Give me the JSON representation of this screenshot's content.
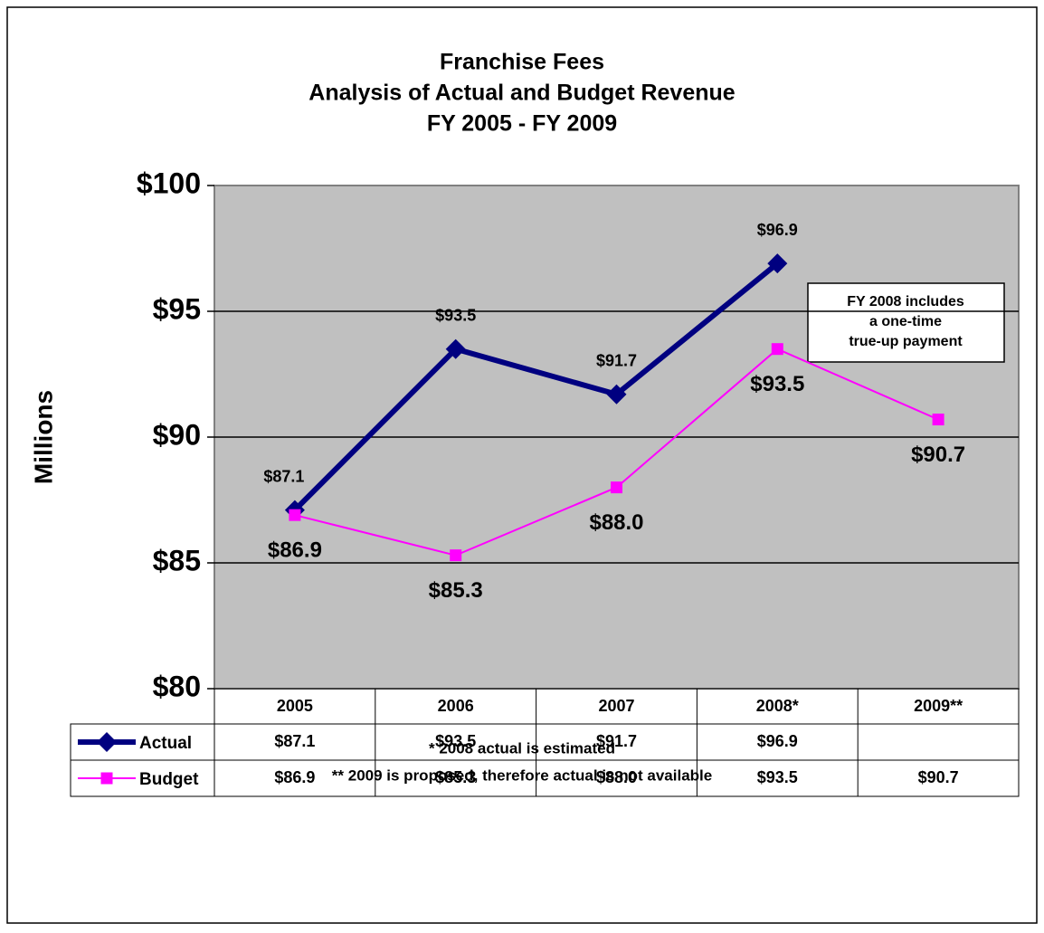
{
  "chart_data": {
    "type": "line",
    "title": [
      "Franchise Fees",
      "Analysis of Actual and Budget Revenue",
      "FY 2005 - FY 2009"
    ],
    "ylabel": "Millions",
    "categories": [
      "2005",
      "2006",
      "2007",
      "2008*",
      "2009**"
    ],
    "series": [
      {
        "name": "Actual",
        "color": "#000080",
        "values": [
          87.1,
          93.5,
          91.7,
          96.9,
          null
        ],
        "value_labels": [
          "$87.1",
          "$93.5",
          "$91.7",
          "$96.9",
          null
        ]
      },
      {
        "name": "Budget",
        "color": "#ff00ff",
        "values": [
          86.9,
          85.3,
          88.0,
          93.5,
          90.7
        ],
        "value_labels": [
          "$86.9",
          "$85.3",
          "$88.0",
          "$93.5",
          "$90.7"
        ]
      }
    ],
    "ylim": [
      80,
      100
    ],
    "yticks": [
      {
        "value": 80,
        "label": "$80"
      },
      {
        "value": 85,
        "label": "$85"
      },
      {
        "value": 90,
        "label": "$90"
      },
      {
        "value": 95,
        "label": "$95"
      },
      {
        "value": 100,
        "label": "$100"
      }
    ],
    "grid": true,
    "annotation": [
      "FY 2008 includes",
      "a one-time",
      "true-up payment"
    ],
    "footnotes": [
      "* 2008 actual is estimated",
      "** 2009 is proposed,  therefore actual is not available"
    ]
  }
}
